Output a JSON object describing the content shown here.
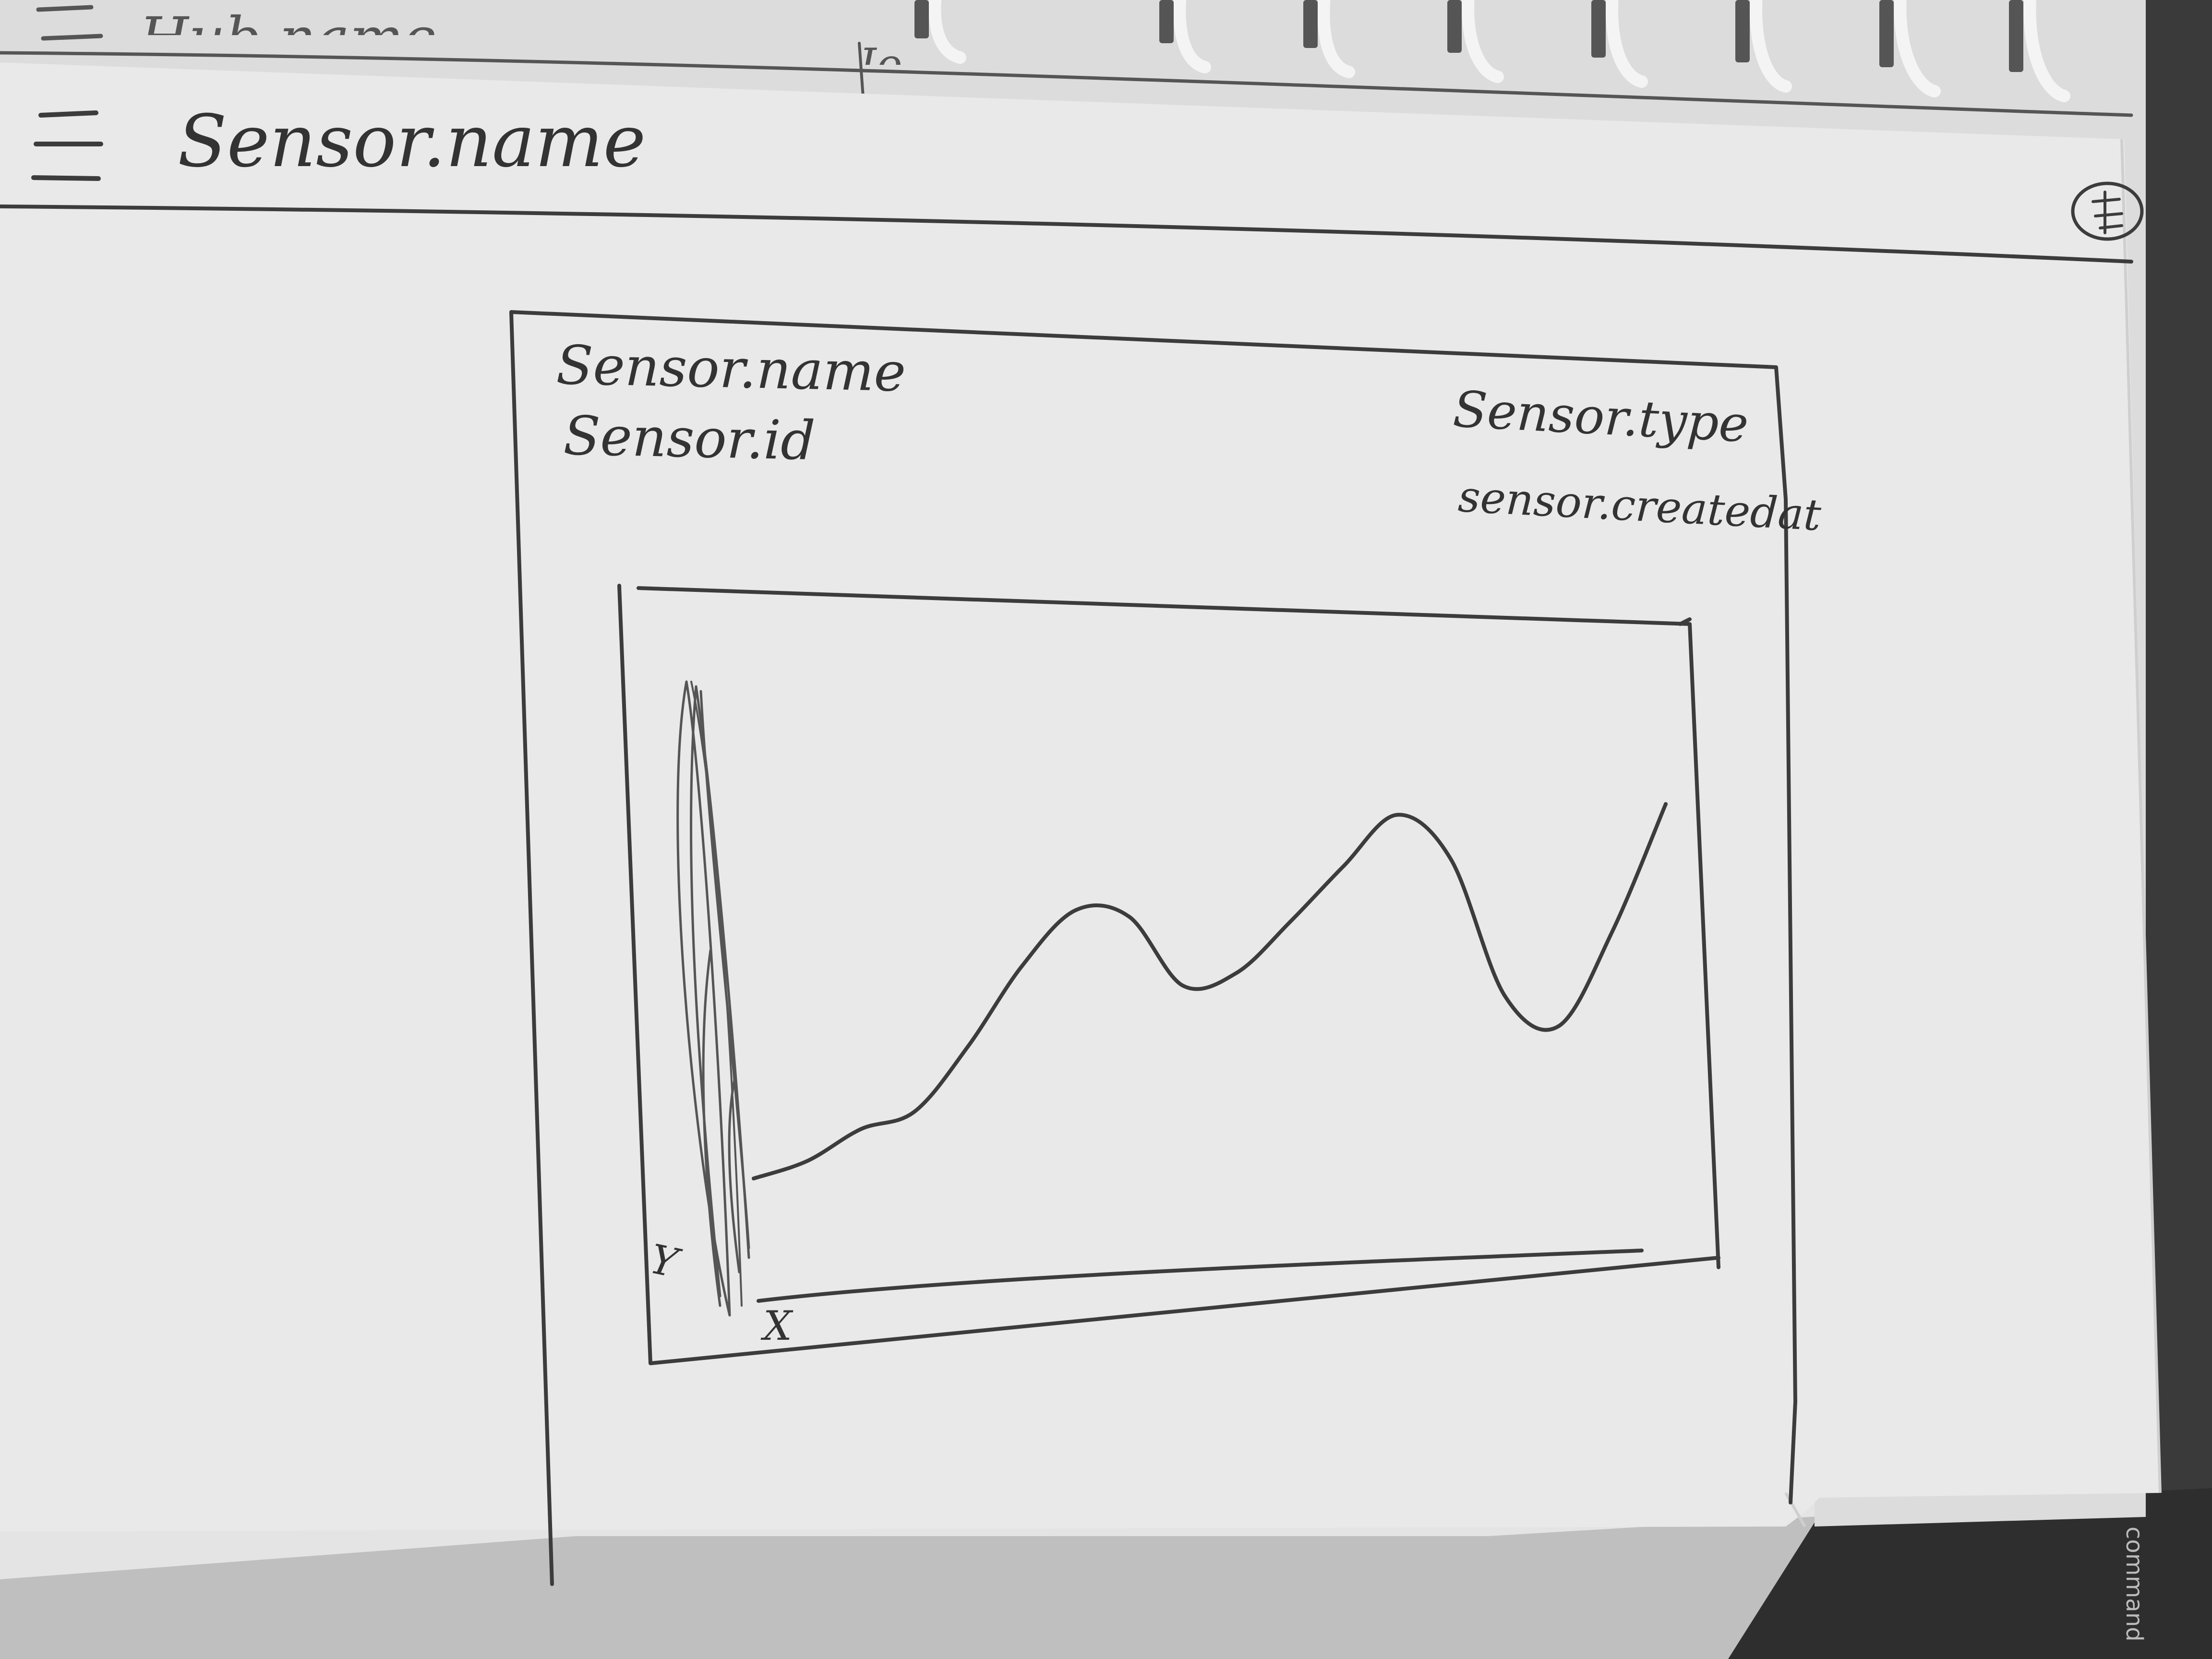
{
  "back_page": {
    "header_label": "Hub.name",
    "header_value": "Io"
  },
  "app_bar": {
    "title": "Sensor.name",
    "menu_icon": "hamburger-menu-icon",
    "profile_icon": "profile-avatar-icon"
  },
  "sensor_card": {
    "name": "Sensor.name",
    "id": "Sensor.id",
    "type": "Sensor.type",
    "created_at": "sensor.createdat"
  },
  "chart_data": {
    "type": "line",
    "title": "",
    "xlabel": "X",
    "ylabel": "Y",
    "grid": false,
    "legend": "none",
    "x": [
      0,
      1,
      2,
      3,
      4,
      5,
      6,
      7,
      8,
      9,
      10,
      11,
      12,
      13,
      14,
      15,
      16,
      17
    ],
    "series": [
      {
        "values": [
          5,
          8,
          14,
          17,
          30,
          46,
          57,
          55,
          40,
          42,
          52,
          63,
          73,
          63,
          34,
          27,
          46,
          72
        ]
      }
    ]
  },
  "device": {
    "brand_text": "command"
  }
}
